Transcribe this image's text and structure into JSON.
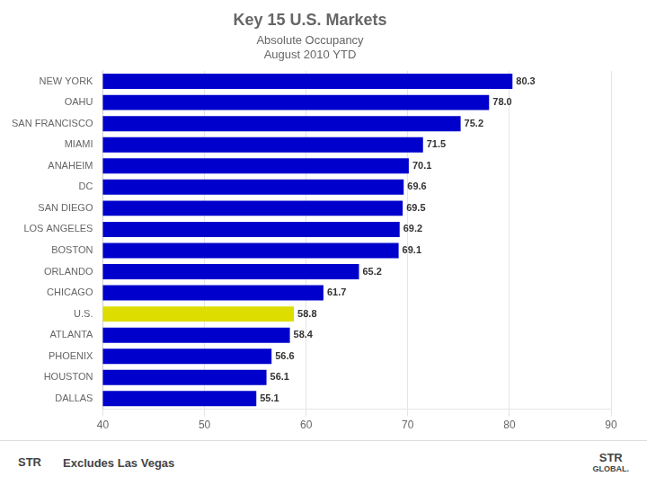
{
  "chart_data": {
    "type": "bar",
    "orientation": "horizontal",
    "title": "Key 15 U.S. Markets",
    "subtitle": [
      "Absolute Occupancy",
      "August 2010 YTD"
    ],
    "annotations": [
      "STR",
      "Excludes Las Vegas",
      "STR",
      "GLOBAL."
    ],
    "categories": [
      "NEW YORK",
      "OAHU",
      "SAN FRANCISCO",
      "MIAMI",
      "ANAHEIM",
      "DC",
      "SAN DIEGO",
      "LOS ANGELES",
      "BOSTON",
      "ORLANDO",
      "CHICAGO",
      "U.S.",
      "ATLANTA",
      "PHOENIX",
      "HOUSTON",
      "DALLAS"
    ],
    "values": [
      80.3,
      78.0,
      75.2,
      71.5,
      70.1,
      69.6,
      69.5,
      69.2,
      69.1,
      65.2,
      61.7,
      58.8,
      58.4,
      56.6,
      56.1,
      55.1
    ],
    "value_labels": [
      "80.3",
      "78.0",
      "75.2",
      "71.5",
      "70.1",
      "69.6",
      "69.5",
      "69.2",
      "69.1",
      "65.2",
      "61.7",
      "58.8",
      "58.4",
      "56.6",
      "56.1",
      "55.1"
    ],
    "colors": [
      "#0000cc",
      "#0000cc",
      "#0000cc",
      "#0000cc",
      "#0000cc",
      "#0000cc",
      "#0000cc",
      "#0000cc",
      "#0000cc",
      "#0000cc",
      "#0000cc",
      "#dddd00",
      "#0000cc",
      "#0000cc",
      "#0000cc",
      "#0000cc"
    ],
    "data_labels": true,
    "xlim": [
      40,
      90
    ],
    "xticks": [
      40,
      50,
      60,
      70,
      80,
      90
    ],
    "grid": true
  }
}
